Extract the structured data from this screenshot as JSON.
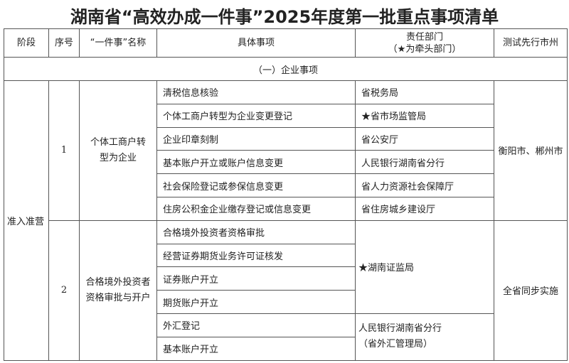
{
  "title": "湖南省“高效办成一件事”2025年度第一批重点事项清单",
  "headers": {
    "stage": "阶段",
    "no": "序号",
    "name": "“一件事”名称",
    "items": "具体事项",
    "dept_line1": "责任部门",
    "dept_line2": "（★为牵头部门）",
    "pilot": "测试先行市州"
  },
  "section": "（一）企业事项",
  "stage": "准入准营",
  "groups": [
    {
      "no": "1",
      "name": "个体工商户转型为企业",
      "pilot": "衡阳市、郴州市",
      "rows": [
        {
          "item": "清税信息核验",
          "dept": "省税务局"
        },
        {
          "item": "个体工商户转型为企业变更登记",
          "dept": "★省市场监管局"
        },
        {
          "item": "企业印章刻制",
          "dept": "省公安厅"
        },
        {
          "item": "基本账户开立或账户信息变更",
          "dept": "人民银行湖南省分行"
        },
        {
          "item": "社会保险登记或参保信息变更",
          "dept": "省人力资源社会保障厅"
        },
        {
          "item": "住房公积金企业缴存登记或信息变更",
          "dept": "省住房城乡建设厅"
        }
      ]
    },
    {
      "no": "2",
      "name": "合格境外投资者资格审批与开户",
      "pilot": "全省同步实施",
      "items": [
        "合格境外投资者资格审批",
        "经营证券期货业务许可证核发",
        "证券账户开立",
        "期货账户开立",
        "外汇登记",
        "基本账户开立"
      ],
      "dept_a": "★湖南证监局",
      "dept_b_line1": "人民银行湖南省分行",
      "dept_b_line2": "（省外汇管理局）"
    }
  ]
}
